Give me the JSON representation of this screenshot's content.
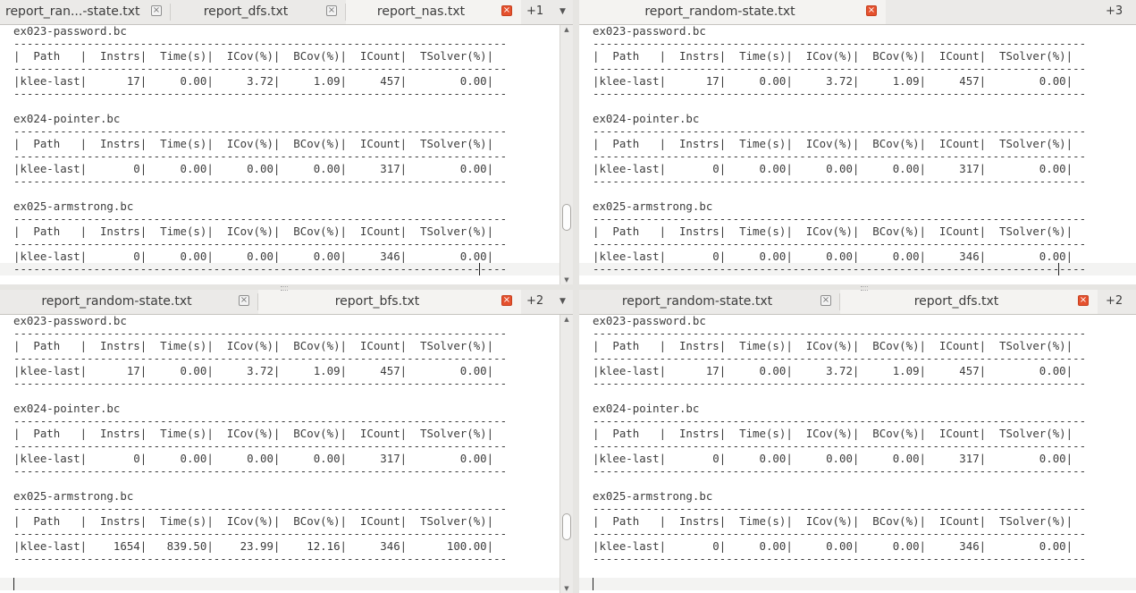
{
  "panes": {
    "top_left": {
      "tabs": [
        {
          "label": "report_ran...-state.txt",
          "active": false
        },
        {
          "label": "report_dfs.txt",
          "active": false
        },
        {
          "label": "report_nas.txt",
          "active": true
        }
      ],
      "more": "+1",
      "text": "ex023-password.bc\n--------------------------------------------------------------------------\n|  Path   |  Instrs|  Time(s)|  ICov(%)|  BCov(%)|  ICount|  TSolver(%)|\n--------------------------------------------------------------------------\n|klee-last|      17|     0.00|     3.72|     1.09|     457|        0.00|\n--------------------------------------------------------------------------\n\nex024-pointer.bc\n--------------------------------------------------------------------------\n|  Path   |  Instrs|  Time(s)|  ICov(%)|  BCov(%)|  ICount|  TSolver(%)|\n--------------------------------------------------------------------------\n|klee-last|       0|     0.00|     0.00|     0.00|     317|        0.00|\n--------------------------------------------------------------------------\n\nex025-armstrong.bc\n--------------------------------------------------------------------------\n|  Path   |  Instrs|  Time(s)|  ICov(%)|  BCov(%)|  ICount|  TSolver(%)|\n--------------------------------------------------------------------------\n|klee-last|       0|     0.00|     0.00|     0.00|     346|        0.00|\n--------------------------------------------------------------------------"
    },
    "top_right": {
      "tabs": [
        {
          "label": "report_random-state.txt",
          "active": true
        }
      ],
      "more": "+3",
      "text": "ex023-password.bc\n--------------------------------------------------------------------------\n|  Path   |  Instrs|  Time(s)|  ICov(%)|  BCov(%)|  ICount|  TSolver(%)|\n--------------------------------------------------------------------------\n|klee-last|      17|     0.00|     3.72|     1.09|     457|        0.00|\n--------------------------------------------------------------------------\n\nex024-pointer.bc\n--------------------------------------------------------------------------\n|  Path   |  Instrs|  Time(s)|  ICov(%)|  BCov(%)|  ICount|  TSolver(%)|\n--------------------------------------------------------------------------\n|klee-last|       0|     0.00|     0.00|     0.00|     317|        0.00|\n--------------------------------------------------------------------------\n\nex025-armstrong.bc\n--------------------------------------------------------------------------\n|  Path   |  Instrs|  Time(s)|  ICov(%)|  BCov(%)|  ICount|  TSolver(%)|\n--------------------------------------------------------------------------\n|klee-last|       0|     0.00|     0.00|     0.00|     346|        0.00|\n--------------------------------------------------------------------------"
    },
    "bottom_left": {
      "tabs": [
        {
          "label": "report_random-state.txt",
          "active": false
        },
        {
          "label": "report_bfs.txt",
          "active": true
        }
      ],
      "more": "+2",
      "text": "ex023-password.bc\n--------------------------------------------------------------------------\n|  Path   |  Instrs|  Time(s)|  ICov(%)|  BCov(%)|  ICount|  TSolver(%)|\n--------------------------------------------------------------------------\n|klee-last|      17|     0.00|     3.72|     1.09|     457|        0.00|\n--------------------------------------------------------------------------\n\nex024-pointer.bc\n--------------------------------------------------------------------------\n|  Path   |  Instrs|  Time(s)|  ICov(%)|  BCov(%)|  ICount|  TSolver(%)|\n--------------------------------------------------------------------------\n|klee-last|       0|     0.00|     0.00|     0.00|     317|        0.00|\n--------------------------------------------------------------------------\n\nex025-armstrong.bc\n--------------------------------------------------------------------------\n|  Path   |  Instrs|  Time(s)|  ICov(%)|  BCov(%)|  ICount|  TSolver(%)|\n--------------------------------------------------------------------------\n|klee-last|    1654|   839.50|    23.99|    12.16|     346|      100.00|\n--------------------------------------------------------------------------"
    },
    "bottom_right": {
      "tabs": [
        {
          "label": "report_random-state.txt",
          "active": false
        },
        {
          "label": "report_dfs.txt",
          "active": true
        }
      ],
      "more": "+2",
      "text": "ex023-password.bc\n--------------------------------------------------------------------------\n|  Path   |  Instrs|  Time(s)|  ICov(%)|  BCov(%)|  ICount|  TSolver(%)|\n--------------------------------------------------------------------------\n|klee-last|      17|     0.00|     3.72|     1.09|     457|        0.00|\n--------------------------------------------------------------------------\n\nex024-pointer.bc\n--------------------------------------------------------------------------\n|  Path   |  Instrs|  Time(s)|  ICov(%)|  BCov(%)|  ICount|  TSolver(%)|\n--------------------------------------------------------------------------\n|klee-last|       0|     0.00|     0.00|     0.00|     317|        0.00|\n--------------------------------------------------------------------------\n\nex025-armstrong.bc\n--------------------------------------------------------------------------\n|  Path   |  Instrs|  Time(s)|  ICov(%)|  BCov(%)|  ICount|  TSolver(%)|\n--------------------------------------------------------------------------\n|klee-last|       0|     0.00|     0.00|     0.00|     346|        0.00|\n--------------------------------------------------------------------------"
    }
  },
  "icons": {
    "close": "close-icon",
    "dropdown": "chevron-down-icon"
  },
  "colors": {
    "active_close": "#e5512e",
    "tabbar": "#ebeae8",
    "text": "#3c3c3c"
  }
}
